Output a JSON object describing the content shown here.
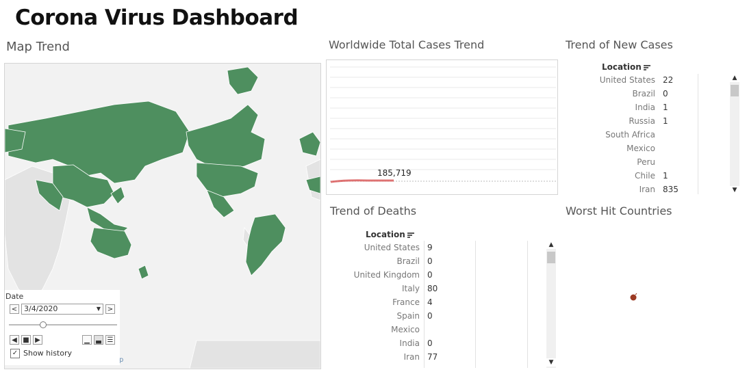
{
  "dashboard": {
    "title": "Corona Virus Dashboard"
  },
  "map_panel": {
    "title": "Map Trend",
    "land_color": "#4e8f5f",
    "empty_color": "#e3e3e3",
    "ocean_color": "#f2f2f2",
    "attribution_fragment": "p"
  },
  "date_control": {
    "label": "Date",
    "value": "3/4/2020",
    "prev_icon": "chevron-left-icon",
    "next_icon": "chevron-right-icon",
    "dropdown_icon": "caret-down-icon",
    "show_history_label": "Show history",
    "show_history_checked": true
  },
  "worldwide_panel": {
    "title": "Worldwide Total Cases Trend",
    "line_color": "#d95b5b",
    "data_label": "185,719"
  },
  "new_cases_panel": {
    "title": "Trend of New Cases",
    "column_header": "Location",
    "rows": [
      {
        "location": "United States",
        "value": "22"
      },
      {
        "location": "Brazil",
        "value": "0"
      },
      {
        "location": "India",
        "value": "1"
      },
      {
        "location": "Russia",
        "value": "1"
      },
      {
        "location": "South Africa",
        "value": ""
      },
      {
        "location": "Mexico",
        "value": ""
      },
      {
        "location": "Peru",
        "value": ""
      },
      {
        "location": "Chile",
        "value": "1"
      },
      {
        "location": "Iran",
        "value": "835"
      }
    ]
  },
  "deaths_panel": {
    "title": "Trend of Deaths",
    "column_header": "Location",
    "rows": [
      {
        "location": "United States",
        "value": "9"
      },
      {
        "location": "Brazil",
        "value": "0"
      },
      {
        "location": "United Kingdom",
        "value": "0"
      },
      {
        "location": "Italy",
        "value": "80"
      },
      {
        "location": "France",
        "value": "4"
      },
      {
        "location": "Spain",
        "value": "0"
      },
      {
        "location": "Mexico",
        "value": ""
      },
      {
        "location": "India",
        "value": "0"
      },
      {
        "location": "Iran",
        "value": "77"
      }
    ]
  },
  "worst_hit_panel": {
    "title": "Worst Hit Countries",
    "dot_color": "#9c3a24"
  }
}
